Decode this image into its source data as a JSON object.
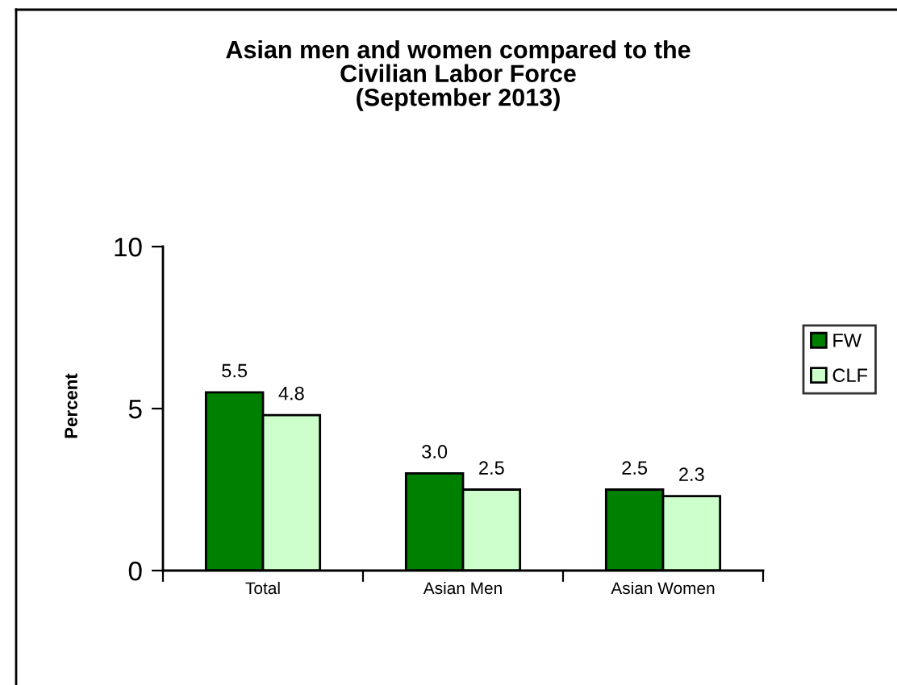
{
  "chart_data": {
    "type": "bar",
    "title": "Asian men and women compared to the\nCivilian Labor Force\n(September 2013)",
    "ylabel": "Percent",
    "categories": [
      "Total",
      "Asian Men",
      "Asian Women"
    ],
    "series": [
      {
        "name": "FW",
        "color": "#008000",
        "values": [
          5.5,
          3.0,
          2.5
        ],
        "value_labels": [
          "5.5",
          "3.0",
          "2.5"
        ]
      },
      {
        "name": "CLF",
        "color": "#ccffcc",
        "values": [
          4.8,
          2.5,
          2.3
        ],
        "value_labels": [
          "4.8",
          "2.5",
          "2.3"
        ]
      }
    ],
    "ylim": [
      0,
      10
    ],
    "yticks": [
      0,
      5,
      10
    ],
    "grid": false,
    "legend": "right"
  }
}
